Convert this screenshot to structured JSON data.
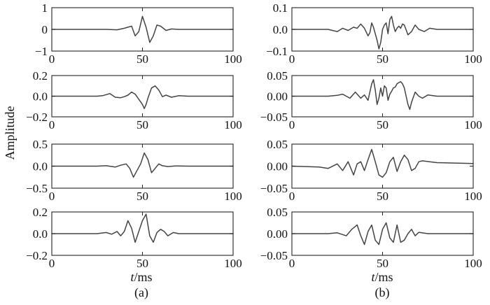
{
  "ylabel": "Amplitude",
  "xlabel_italic": "t",
  "xlabel_unit": "/ms",
  "captions": [
    "(a)",
    "(b)"
  ],
  "chart_data": [
    {
      "type": "line",
      "panel": "a1",
      "xlim": [
        0,
        100
      ],
      "ylim": [
        -1,
        1
      ],
      "x_ticks": [
        0,
        50,
        100
      ],
      "y_ticks": [
        -1,
        0,
        1
      ],
      "y_tick_labels": [
        "−1",
        "0",
        "1"
      ],
      "x": [
        0,
        30,
        36,
        40,
        44,
        46,
        48,
        50,
        52,
        54,
        56,
        58,
        60,
        63,
        66,
        70,
        75,
        100
      ],
      "y": [
        0,
        0,
        -0.02,
        0.05,
        0.15,
        -0.3,
        -0.1,
        0.6,
        0.1,
        -0.6,
        -0.3,
        0.2,
        0.15,
        -0.05,
        0.02,
        0,
        0,
        0
      ]
    },
    {
      "type": "line",
      "panel": "b1",
      "xlim": [
        0,
        100
      ],
      "ylim": [
        -0.1,
        0.1
      ],
      "x_ticks": [
        0,
        50,
        100
      ],
      "y_ticks": [
        -0.1,
        0,
        0.1
      ],
      "y_tick_labels": [
        "−0.1",
        "0.0",
        "0.1"
      ],
      "x": [
        0,
        20,
        25,
        28,
        31,
        34,
        36,
        38,
        40,
        42,
        43,
        44,
        45,
        46,
        47,
        48,
        49,
        50,
        51,
        52,
        53,
        54,
        55,
        56,
        57,
        58,
        59,
        60,
        61,
        62,
        64,
        66,
        68,
        70,
        73,
        76,
        80,
        100
      ],
      "y": [
        0,
        0,
        -0.01,
        0.005,
        -0.005,
        0.01,
        0.005,
        0.025,
        0.005,
        -0.03,
        -0.015,
        0.03,
        0.01,
        -0.02,
        -0.05,
        -0.09,
        -0.06,
        0.0,
        0.02,
        0.03,
        -0.02,
        0.045,
        0.06,
        0.02,
        -0.01,
        0.005,
        0.015,
        0.005,
        0.025,
        0.02,
        -0.025,
        -0.01,
        0.02,
        0.0,
        -0.01,
        0.005,
        0,
        0
      ]
    },
    {
      "type": "line",
      "panel": "a2",
      "xlim": [
        0,
        100
      ],
      "ylim": [
        -0.2,
        0.2
      ],
      "x_ticks": [
        0,
        50,
        100
      ],
      "y_ticks": [
        -0.2,
        0,
        0.2
      ],
      "y_tick_labels": [
        "−0.2",
        "0.0",
        "0.2"
      ],
      "x": [
        0,
        25,
        28,
        32,
        35,
        38,
        40,
        42,
        44,
        46,
        48,
        50,
        51,
        52,
        53,
        55,
        57,
        59,
        61,
        63,
        66,
        70,
        75,
        100
      ],
      "y": [
        0,
        0,
        0.005,
        0.025,
        -0.01,
        -0.015,
        -0.005,
        0.01,
        0.04,
        0.02,
        -0.03,
        -0.08,
        -0.12,
        -0.08,
        -0.02,
        0.08,
        0.1,
        0.06,
        -0.005,
        0.01,
        -0.01,
        0.005,
        0,
        0
      ]
    },
    {
      "type": "line",
      "panel": "b2",
      "xlim": [
        0,
        100
      ],
      "ylim": [
        -0.05,
        0.05
      ],
      "x_ticks": [
        0,
        50,
        100
      ],
      "y_ticks": [
        -0.05,
        0,
        0.05
      ],
      "y_tick_labels": [
        "−0.05",
        "0.00",
        "0.05"
      ],
      "x": [
        0,
        20,
        25,
        28,
        32,
        35,
        38,
        40,
        42,
        44,
        45,
        46,
        47,
        48,
        49,
        50,
        51,
        52,
        53,
        54,
        55,
        56,
        57,
        58,
        59,
        60,
        61,
        62,
        63,
        64,
        65,
        66,
        68,
        70,
        72,
        75,
        80,
        100
      ],
      "y": [
        0,
        0,
        0.002,
        0.005,
        -0.005,
        0.01,
        -0.005,
        0.003,
        -0.01,
        0.03,
        0.04,
        0.015,
        -0.02,
        -0.005,
        0.02,
        0.0,
        0.025,
        0.02,
        -0.01,
        0.005,
        0.012,
        0.02,
        0.022,
        0.03,
        0.033,
        0.035,
        0.03,
        0.02,
        0.0,
        -0.02,
        -0.032,
        -0.015,
        0.01,
        0.0,
        -0.005,
        0.003,
        0,
        0
      ]
    },
    {
      "type": "line",
      "panel": "a3",
      "xlim": [
        0,
        100
      ],
      "ylim": [
        -0.5,
        0.5
      ],
      "x_ticks": [
        0,
        50,
        100
      ],
      "y_ticks": [
        -0.5,
        0,
        0.5
      ],
      "y_tick_labels": [
        "−0.5",
        "0.0",
        "0.5"
      ],
      "x": [
        0,
        25,
        30,
        35,
        38,
        41,
        43,
        45,
        47,
        49,
        51,
        53,
        55,
        57,
        59,
        61,
        64,
        68,
        75,
        100
      ],
      "y": [
        0,
        0,
        0.01,
        -0.02,
        0.02,
        0.05,
        -0.05,
        -0.25,
        -0.1,
        0.05,
        0.3,
        0.15,
        -0.15,
        -0.05,
        0.05,
        0.01,
        -0.01,
        0.005,
        0,
        0
      ]
    },
    {
      "type": "line",
      "panel": "b3",
      "xlim": [
        0,
        100
      ],
      "ylim": [
        -0.05,
        0.05
      ],
      "x_ticks": [
        0,
        50,
        100
      ],
      "y_ticks": [
        -0.05,
        0,
        0.05
      ],
      "y_tick_labels": [
        "−0.05",
        "0.00",
        "0.05"
      ],
      "x": [
        0,
        15,
        20,
        25,
        28,
        31,
        34,
        36,
        38,
        40,
        42,
        44,
        46,
        48,
        50,
        52,
        54,
        56,
        58,
        60,
        62,
        64,
        66,
        68,
        70,
        72,
        76,
        80,
        100
      ],
      "y": [
        0,
        -0.002,
        -0.005,
        0.005,
        -0.01,
        0.01,
        -0.02,
        0.005,
        0.01,
        -0.01,
        0.015,
        0.038,
        0.01,
        -0.02,
        -0.025,
        -0.015,
        0.01,
        0.02,
        -0.012,
        0.01,
        0.025,
        0.015,
        -0.01,
        -0.005,
        0.01,
        0.012,
        0.01,
        0.008,
        0.006
      ]
    },
    {
      "type": "line",
      "panel": "a4",
      "xlim": [
        0,
        100
      ],
      "ylim": [
        -0.2,
        0.2
      ],
      "x_ticks": [
        0,
        50,
        100
      ],
      "y_ticks": [
        -0.2,
        0,
        0.2
      ],
      "y_tick_labels": [
        "−0.2",
        "0.0",
        "0.2"
      ],
      "x": [
        0,
        25,
        30,
        33,
        36,
        38,
        40,
        42,
        44,
        46,
        48,
        50,
        52,
        54,
        56,
        58,
        60,
        62,
        64,
        67,
        70,
        75,
        100
      ],
      "y": [
        0,
        0,
        0.01,
        -0.005,
        0.02,
        -0.02,
        0.02,
        0.12,
        0.05,
        -0.08,
        0.02,
        0.12,
        0.18,
        -0.02,
        -0.08,
        0.01,
        0.04,
        0.02,
        -0.02,
        0.01,
        0,
        0,
        0
      ]
    },
    {
      "type": "line",
      "panel": "b4",
      "xlim": [
        0,
        100
      ],
      "ylim": [
        -0.05,
        0.05
      ],
      "x_ticks": [
        0,
        50,
        100
      ],
      "y_ticks": [
        -0.05,
        0,
        0.05
      ],
      "y_tick_labels": [
        "−0.05",
        "0.00",
        "0.05"
      ],
      "x": [
        0,
        20,
        25,
        30,
        33,
        36,
        38,
        40,
        42,
        44,
        46,
        48,
        50,
        52,
        54,
        56,
        58,
        60,
        62,
        64,
        66,
        68,
        70,
        75,
        80,
        100
      ],
      "y": [
        0,
        0,
        0.002,
        -0.005,
        0.01,
        0.02,
        -0.005,
        -0.025,
        0.005,
        0.02,
        -0.015,
        -0.025,
        0.01,
        0.025,
        -0.01,
        -0.02,
        0.02,
        -0.02,
        -0.015,
        0.0,
        0.01,
        -0.005,
        0.003,
        0,
        0,
        0
      ]
    }
  ]
}
